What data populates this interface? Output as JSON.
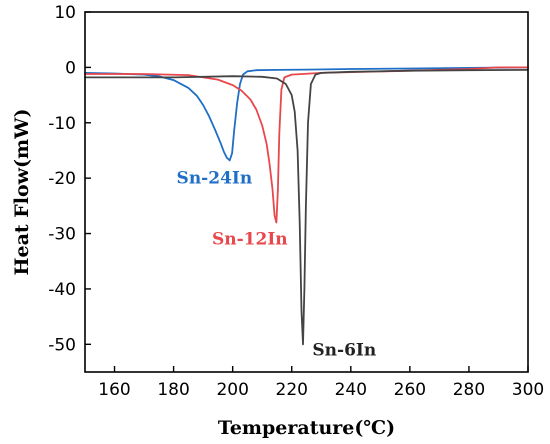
{
  "chart_data": {
    "type": "line",
    "title": "",
    "xlabel": "Temperature(℃)",
    "ylabel": "Heat Flow(mW)",
    "xlim": [
      150,
      300
    ],
    "ylim": [
      -55,
      10
    ],
    "x_ticks": [
      160,
      180,
      200,
      220,
      240,
      260,
      280,
      300
    ],
    "y_ticks": [
      10,
      0,
      -10,
      -20,
      -30,
      -40,
      -50
    ],
    "grid": false,
    "legend": "none",
    "series": [
      {
        "name": "Sn-24In",
        "color": "#1f6fc6",
        "x": [
          150,
          160,
          170,
          175,
          180,
          185,
          188,
          190,
          192,
          194,
          196,
          197,
          198,
          199,
          199.8,
          200.5,
          201.5,
          202.5,
          203.5,
          205,
          208,
          215,
          225,
          240,
          260,
          280,
          300
        ],
        "y": [
          -1.0,
          -1.1,
          -1.3,
          -1.6,
          -2.3,
          -3.7,
          -5.2,
          -6.8,
          -8.8,
          -11.2,
          -13.8,
          -15.2,
          -16.3,
          -16.8,
          -15.5,
          -11.5,
          -6.5,
          -3.0,
          -1.3,
          -0.7,
          -0.5,
          -0.45,
          -0.4,
          -0.3,
          -0.2,
          -0.1,
          0.0
        ]
      },
      {
        "name": "Sn-12In",
        "color": "#e8474b",
        "x": [
          150,
          170,
          185,
          195,
          200,
          203,
          206,
          208,
          210,
          211.5,
          212.5,
          213.5,
          214.2,
          214.8,
          215.3,
          215.8,
          216.5,
          217.5,
          220,
          230,
          260,
          280,
          290,
          300
        ],
        "y": [
          -1.2,
          -1.2,
          -1.4,
          -2.2,
          -3.2,
          -4.2,
          -5.8,
          -7.6,
          -10.5,
          -13.8,
          -17.5,
          -22.0,
          -26.8,
          -28.0,
          -22.0,
          -12.0,
          -4.0,
          -1.8,
          -1.3,
          -1.0,
          -0.6,
          -0.3,
          0.0,
          0.0
        ]
      },
      {
        "name": "Sn-6In",
        "color": "#444444",
        "x": [
          150,
          180,
          200,
          210,
          215,
          218,
          220,
          221,
          222,
          222.7,
          223.3,
          223.8,
          224.3,
          224.8,
          225.5,
          226.5,
          228,
          230,
          240,
          260,
          280,
          300
        ],
        "y": [
          -1.8,
          -1.8,
          -1.6,
          -1.7,
          -2.0,
          -3.0,
          -5.0,
          -8.0,
          -15.0,
          -28.0,
          -44.0,
          -50.0,
          -40.0,
          -25.0,
          -10.0,
          -3.0,
          -1.3,
          -1.0,
          -0.8,
          -0.6,
          -0.5,
          -0.45
        ]
      }
    ],
    "annotations": [
      {
        "text": "Sn-24In",
        "color": "#1f6fc6",
        "x": 181,
        "y": -21
      },
      {
        "text": "Sn-12In",
        "color": "#e8474b",
        "x": 193,
        "y": -32
      },
      {
        "text": "Sn-6In",
        "color": "#222222",
        "x": 227,
        "y": -52
      }
    ]
  }
}
